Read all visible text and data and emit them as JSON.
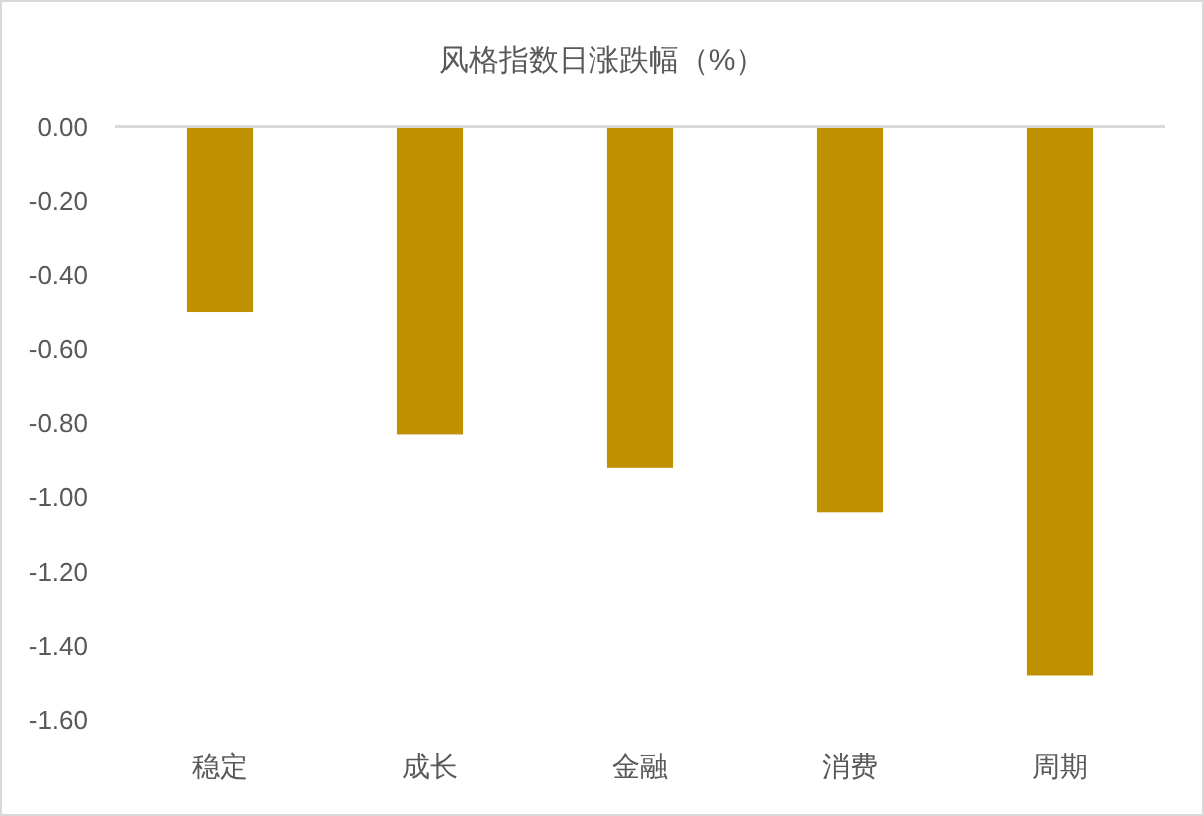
{
  "chart_data": {
    "type": "bar",
    "title": "风格指数日涨跌幅（%）",
    "categories": [
      "稳定",
      "成长",
      "金融",
      "消费",
      "周期"
    ],
    "values": [
      -0.5,
      -0.83,
      -0.92,
      -1.04,
      -1.48
    ],
    "color": "#bf9000",
    "ylim": [
      -1.6,
      0
    ],
    "yticks": [
      {
        "value": 0,
        "label": "0.00"
      },
      {
        "value": -0.2,
        "label": "-0.20"
      },
      {
        "value": -0.4,
        "label": "-0.40"
      },
      {
        "value": -0.6,
        "label": "-0.60"
      },
      {
        "value": -0.8,
        "label": "-0.80"
      },
      {
        "value": -1.0,
        "label": "-1.00"
      },
      {
        "value": -1.2,
        "label": "-1.20"
      },
      {
        "value": -1.4,
        "label": "-1.40"
      },
      {
        "value": -1.6,
        "label": "-1.60"
      }
    ]
  }
}
